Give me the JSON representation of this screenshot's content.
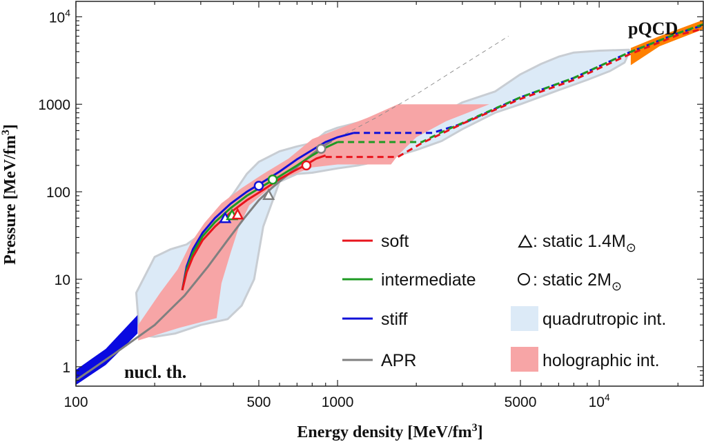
{
  "chart_data": {
    "type": "line",
    "xscale": "log",
    "yscale": "log",
    "xlim": [
      100,
      25000
    ],
    "ylim": [
      0.6,
      15000
    ],
    "xlabel": "Energy density [MeV/fm",
    "xlabel_sup": "3",
    "xlabel_end": "]",
    "ylabel": "Pressure [MeV/fm",
    "ylabel_sup": "3",
    "ylabel_end": "]",
    "xticks": [
      {
        "value": 100,
        "label": "100"
      },
      {
        "value": 500,
        "label": "500"
      },
      {
        "value": 1000,
        "label": "1000"
      },
      {
        "value": 5000,
        "label": "5000"
      },
      {
        "value": 10000,
        "label": "10",
        "sup": "4"
      }
    ],
    "yticks": [
      {
        "value": 1,
        "label": "1"
      },
      {
        "value": 10,
        "label": "10"
      },
      {
        "value": 100,
        "label": "100"
      },
      {
        "value": 1000,
        "label": "1000"
      },
      {
        "value": 10000,
        "label": "10",
        "sup": "4"
      }
    ],
    "annotations": {
      "nucl": "nucl. th.",
      "pqcd": "pQCD"
    },
    "colors": {
      "soft": "#e8141c",
      "intermediate": "#1e9a23",
      "stiff": "#1010d8",
      "apr": "#808080",
      "quadrutropic": "#dceaf7",
      "quadrutropic_edge": "#c8cdd3",
      "holographic": "#f7a5a6",
      "nucl": "#0a0ae0",
      "pqcd": "#ff8000"
    },
    "bands": {
      "quadrutropic": {
        "upper": [
          [
            170,
            7
          ],
          [
            200,
            18
          ],
          [
            230,
            22
          ],
          [
            265,
            25
          ],
          [
            310,
            35
          ],
          [
            360,
            65
          ],
          [
            400,
            95
          ],
          [
            450,
            160
          ],
          [
            500,
            220
          ],
          [
            600,
            290
          ],
          [
            700,
            330
          ],
          [
            800,
            360
          ],
          [
            900,
            480
          ],
          [
            1000,
            540
          ],
          [
            1200,
            620
          ],
          [
            1500,
            700
          ],
          [
            2000,
            720
          ],
          [
            2500,
            780
          ],
          [
            3000,
            1050
          ],
          [
            4000,
            1400
          ],
          [
            5000,
            2200
          ],
          [
            6000,
            2900
          ],
          [
            7000,
            3500
          ],
          [
            8000,
            3900
          ],
          [
            10000,
            4100
          ],
          [
            13000,
            4200
          ]
        ],
        "lower": [
          [
            13000,
            3900
          ],
          [
            12500,
            3000
          ],
          [
            11000,
            2400
          ],
          [
            9000,
            1900
          ],
          [
            7000,
            1450
          ],
          [
            5000,
            1000
          ],
          [
            4000,
            800
          ],
          [
            3000,
            520
          ],
          [
            2500,
            380
          ],
          [
            2000,
            300
          ],
          [
            1700,
            260
          ],
          [
            1500,
            230
          ],
          [
            1200,
            200
          ],
          [
            1000,
            185
          ],
          [
            800,
            165
          ],
          [
            700,
            160
          ],
          [
            600,
            130
          ],
          [
            520,
            40
          ],
          [
            480,
            10
          ],
          [
            430,
            5
          ],
          [
            380,
            3.5
          ],
          [
            300,
            3
          ],
          [
            240,
            2.4
          ],
          [
            200,
            2.2
          ],
          [
            175,
            2.3
          ]
        ]
      },
      "holographic": {
        "upper": [
          [
            173,
            3.0
          ],
          [
            210,
            7
          ],
          [
            245,
            13
          ],
          [
            275,
            26
          ],
          [
            310,
            44
          ],
          [
            360,
            74
          ],
          [
            430,
            110
          ],
          [
            520,
            160
          ],
          [
            650,
            240
          ],
          [
            800,
            400
          ],
          [
            1000,
            520
          ],
          [
            1300,
            700
          ],
          [
            1700,
            1000
          ],
          [
            3800,
            1000
          ]
        ],
        "lower": [
          [
            3800,
            1000
          ],
          [
            2600,
            640
          ],
          [
            2000,
            420
          ],
          [
            1700,
            260
          ],
          [
            1600,
            205
          ],
          [
            1200,
            205
          ],
          [
            1000,
            205
          ],
          [
            800,
            190
          ],
          [
            650,
            150
          ],
          [
            550,
            110
          ],
          [
            460,
            70
          ],
          [
            420,
            40
          ],
          [
            390,
            20
          ],
          [
            360,
            9
          ],
          [
            345,
            3.6
          ],
          [
            250,
            2.8
          ],
          [
            173,
            2.0
          ]
        ]
      },
      "nucl": {
        "upper": [
          [
            100,
            0.92
          ],
          [
            130,
            1.6
          ],
          [
            172,
            3.9
          ]
        ],
        "lower": [
          [
            172,
            2.4
          ],
          [
            130,
            1.05
          ],
          [
            100,
            0.62
          ]
        ]
      },
      "pqcd": {
        "upper": [
          [
            13200,
            4400
          ],
          [
            17000,
            6000
          ],
          [
            25000,
            9200
          ]
        ],
        "lower": [
          [
            25000,
            7200
          ],
          [
            17000,
            4600
          ],
          [
            13200,
            2800
          ]
        ]
      }
    },
    "series": [
      {
        "name": "soft",
        "label": "soft",
        "color": "#e8141c",
        "solid": [
          [
            255,
            7.5
          ],
          [
            265,
            12
          ],
          [
            280,
            18
          ],
          [
            305,
            28
          ],
          [
            340,
            40
          ],
          [
            390,
            58
          ],
          [
            450,
            80
          ],
          [
            520,
            105
          ],
          [
            600,
            140
          ],
          [
            680,
            172
          ],
          [
            750,
            200
          ],
          [
            830,
            240
          ],
          [
            900,
            260
          ]
        ],
        "dashed": [
          [
            900,
            250
          ],
          [
            1700,
            250
          ],
          [
            2100,
            360
          ],
          [
            3000,
            600
          ],
          [
            5000,
            1150
          ],
          [
            8000,
            1900
          ],
          [
            13000,
            3700
          ],
          [
            20000,
            6200
          ],
          [
            25000,
            7300
          ]
        ]
      },
      {
        "name": "intermediate",
        "label": "intermediate",
        "color": "#1e9a23",
        "solid": [
          [
            255,
            7.5
          ],
          [
            265,
            13
          ],
          [
            280,
            20
          ],
          [
            305,
            31
          ],
          [
            340,
            45
          ],
          [
            390,
            65
          ],
          [
            450,
            90
          ],
          [
            520,
            117
          ],
          [
            600,
            150
          ],
          [
            700,
            200
          ],
          [
            800,
            260
          ],
          [
            900,
            320
          ],
          [
            1000,
            370
          ]
        ],
        "dashed": [
          [
            1000,
            370
          ],
          [
            2100,
            370
          ],
          [
            2500,
            480
          ],
          [
            3500,
            750
          ],
          [
            5000,
            1200
          ],
          [
            8000,
            2000
          ],
          [
            13000,
            3900
          ],
          [
            20000,
            6500
          ],
          [
            25000,
            8200
          ]
        ]
      },
      {
        "name": "stiff",
        "label": "stiff",
        "color": "#1010d8",
        "solid": [
          [
            255,
            7.5
          ],
          [
            265,
            14
          ],
          [
            280,
            22
          ],
          [
            305,
            34
          ],
          [
            340,
            50
          ],
          [
            390,
            73
          ],
          [
            450,
            100
          ],
          [
            520,
            130
          ],
          [
            600,
            170
          ],
          [
            700,
            235
          ],
          [
            800,
            300
          ],
          [
            900,
            370
          ],
          [
            1000,
            420
          ],
          [
            1150,
            470
          ]
        ],
        "dashed": [
          [
            1150,
            470
          ],
          [
            2300,
            470
          ],
          [
            3000,
            600
          ],
          [
            5000,
            1200
          ],
          [
            8000,
            2000
          ],
          [
            13000,
            3900
          ],
          [
            20000,
            6500
          ],
          [
            25000,
            8000
          ]
        ]
      },
      {
        "name": "APR",
        "label": "APR",
        "color": "#808080",
        "solid": [
          [
            100,
            0.7
          ],
          [
            140,
            1.4
          ],
          [
            200,
            3.0
          ],
          [
            260,
            6.5
          ],
          [
            320,
            14
          ],
          [
            380,
            28
          ],
          [
            440,
            50
          ],
          [
            500,
            80
          ],
          [
            560,
            110
          ],
          [
            650,
            160
          ],
          [
            750,
            230
          ],
          [
            850,
            310
          ],
          [
            950,
            380
          ]
        ],
        "dashed": [
          [
            950,
            380
          ],
          [
            1400,
            700
          ],
          [
            2000,
            1300
          ],
          [
            3000,
            2800
          ],
          [
            4500,
            6000
          ]
        ]
      }
    ],
    "markers": {
      "triangles": [
        {
          "series": "stiff",
          "x": 372,
          "y": 50,
          "color": "#1010d8"
        },
        {
          "series": "intermediate",
          "x": 395,
          "y": 54,
          "color": "#1e9a23"
        },
        {
          "series": "soft",
          "x": 415,
          "y": 55,
          "color": "#e8141c"
        },
        {
          "series": "APR",
          "x": 545,
          "y": 92,
          "color": "#808080"
        }
      ],
      "circles": [
        {
          "series": "stiff",
          "x": 500,
          "y": 117,
          "color": "#1010d8"
        },
        {
          "series": "intermediate",
          "x": 565,
          "y": 138,
          "color": "#1e9a23"
        },
        {
          "series": "soft",
          "x": 760,
          "y": 200,
          "color": "#e8141c"
        },
        {
          "series": "APR",
          "x": 865,
          "y": 310,
          "color": "#808080"
        }
      ]
    },
    "legend": {
      "lines": [
        {
          "key": "soft",
          "label": "soft"
        },
        {
          "key": "intermediate",
          "label": "intermediate"
        },
        {
          "key": "stiff",
          "label": "stiff"
        },
        {
          "key": "apr",
          "label": "APR"
        }
      ],
      "triangle_label": ": static 1.4M",
      "circle_label": ": static  2M",
      "sun_symbol": "⊙",
      "quadrutropic_label": "quadrutropic int.",
      "holographic_label": "holographic int."
    }
  }
}
